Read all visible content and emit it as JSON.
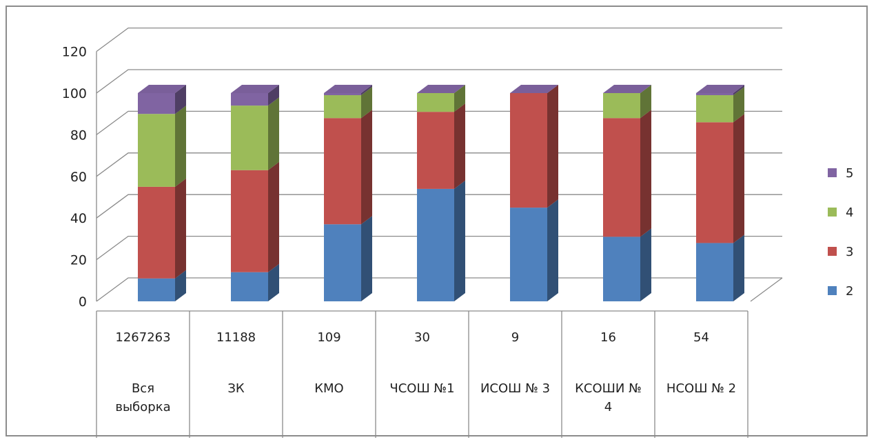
{
  "chart_data": {
    "type": "bar",
    "stacked": true,
    "three_d": true,
    "ylim": [
      0,
      120
    ],
    "yticks": [
      0,
      20,
      40,
      60,
      80,
      100,
      120
    ],
    "grid": true,
    "legend_position": "right",
    "categories": [
      "Вся выборка",
      "ЗК",
      "КМО",
      "ЧСОШ №1",
      "ИСОШ № 3",
      "КСОШИ № 4",
      "НСОШ № 2"
    ],
    "category_label_lines": [
      [
        "Вся",
        "выборка"
      ],
      [
        "ЗК"
      ],
      [
        "КМО"
      ],
      [
        "ЧСОШ №1"
      ],
      [
        "ИСОШ № 3"
      ],
      [
        "КСОШИ №",
        "4"
      ],
      [
        "НСОШ № 2"
      ]
    ],
    "table_row": [
      "1267263",
      "11188",
      "109",
      "30",
      "9",
      "16",
      "54"
    ],
    "series": [
      {
        "name": "2",
        "color": "#4F81BD",
        "values": [
          11,
          14,
          37,
          54,
          45,
          31,
          28
        ]
      },
      {
        "name": "3",
        "color": "#C0504D",
        "values": [
          44,
          49,
          51,
          37,
          55,
          57,
          58
        ]
      },
      {
        "name": "4",
        "color": "#9BBB59",
        "values": [
          35,
          31,
          11,
          9,
          0,
          12,
          13
        ]
      },
      {
        "name": "5",
        "color": "#8064A2",
        "values": [
          10,
          6,
          1,
          0,
          0,
          0,
          1
        ]
      }
    ],
    "legend_order": [
      "5",
      "4",
      "3",
      "2"
    ]
  }
}
